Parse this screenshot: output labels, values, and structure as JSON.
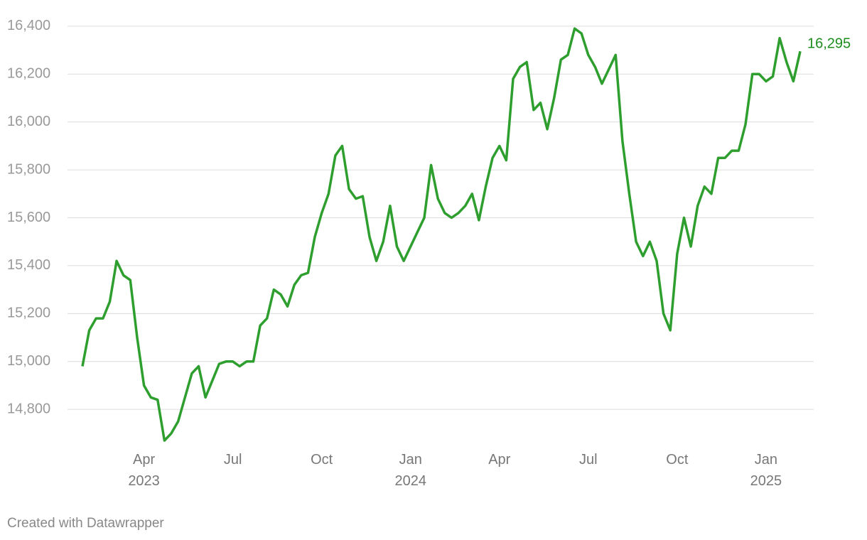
{
  "chart_data": {
    "type": "line",
    "categories": [
      null,
      null,
      null,
      null,
      null,
      null,
      null,
      null,
      null,
      "Apr 2023",
      null,
      null,
      null,
      null,
      null,
      null,
      null,
      null,
      null,
      null,
      null,
      null,
      "Jul",
      null,
      null,
      null,
      null,
      null,
      null,
      null,
      null,
      null,
      null,
      null,
      null,
      "Oct",
      null,
      null,
      null,
      null,
      null,
      null,
      null,
      null,
      null,
      null,
      null,
      null,
      "Jan 2024",
      null,
      null,
      null,
      null,
      null,
      null,
      null,
      null,
      null,
      null,
      null,
      null,
      "Apr",
      null,
      null,
      null,
      null,
      null,
      null,
      null,
      null,
      null,
      null,
      null,
      null,
      "Jul",
      null,
      null,
      null,
      null,
      null,
      null,
      null,
      null,
      null,
      null,
      null,
      null,
      "Oct",
      null,
      null,
      null,
      null,
      null,
      null,
      null,
      null,
      null,
      null,
      null,
      null,
      "Jan 2025",
      null,
      null,
      null,
      null,
      null
    ],
    "values": [
      14980,
      15130,
      15180,
      15180,
      15250,
      15420,
      15360,
      15340,
      15100,
      14900,
      14850,
      14840,
      14670,
      14700,
      14750,
      14850,
      14950,
      14980,
      14850,
      14920,
      14990,
      15000,
      15000,
      14980,
      15000,
      15000,
      15150,
      15180,
      15300,
      15280,
      15230,
      15320,
      15360,
      15370,
      15520,
      15620,
      15700,
      15860,
      15900,
      15720,
      15680,
      15690,
      15520,
      15420,
      15500,
      15650,
      15480,
      15420,
      15480,
      15540,
      15600,
      15820,
      15680,
      15620,
      15600,
      15620,
      15650,
      15700,
      15590,
      15730,
      15850,
      15900,
      15840,
      16180,
      16230,
      16250,
      16050,
      16080,
      15970,
      16100,
      16260,
      16280,
      16390,
      16370,
      16280,
      16230,
      16160,
      16220,
      16280,
      15920,
      15700,
      15500,
      15440,
      15500,
      15420,
      15200,
      15130,
      15450,
      15600,
      15480,
      15650,
      15730,
      15700,
      15850,
      15850,
      15880,
      15880,
      15990,
      16200,
      16200,
      16170,
      16190,
      16350,
      16250,
      16170,
      16295
    ],
    "value_labels": [
      null,
      null,
      null,
      null,
      null,
      null,
      null,
      null,
      null,
      null,
      null,
      null,
      null,
      null,
      null,
      null,
      null,
      null,
      null,
      null,
      null,
      null,
      null,
      null,
      null,
      null,
      null,
      null,
      null,
      null,
      null,
      null,
      null,
      null,
      null,
      null,
      null,
      null,
      null,
      null,
      null,
      null,
      null,
      null,
      null,
      null,
      null,
      null,
      null,
      null,
      null,
      null,
      null,
      null,
      null,
      null,
      null,
      null,
      null,
      null,
      null,
      null,
      null,
      null,
      null,
      null,
      null,
      null,
      null,
      null,
      null,
      null,
      null,
      null,
      null,
      null,
      null,
      null,
      null,
      null,
      null,
      null,
      null,
      null,
      null,
      null,
      null,
      null,
      null,
      null,
      null,
      null,
      null,
      null,
      null,
      null,
      null,
      null,
      null,
      null,
      null,
      null,
      null,
      null,
      null,
      "16,295"
    ],
    "color": "#2e9e2e",
    "ylim": [
      14670,
      16450
    ],
    "yticks": [
      {
        "value": 14800,
        "label": "14,800"
      },
      {
        "value": 15000,
        "label": "15,000"
      },
      {
        "value": 15200,
        "label": "15,200"
      },
      {
        "value": 15400,
        "label": "15,400"
      },
      {
        "value": 15600,
        "label": "15,600"
      },
      {
        "value": 15800,
        "label": "15,800"
      },
      {
        "value": 16000,
        "label": "16,000"
      },
      {
        "value": 16200,
        "label": "16,200"
      },
      {
        "value": 16400,
        "label": "16,400"
      }
    ],
    "grid": true,
    "footer": "Created with Datawrapper"
  }
}
